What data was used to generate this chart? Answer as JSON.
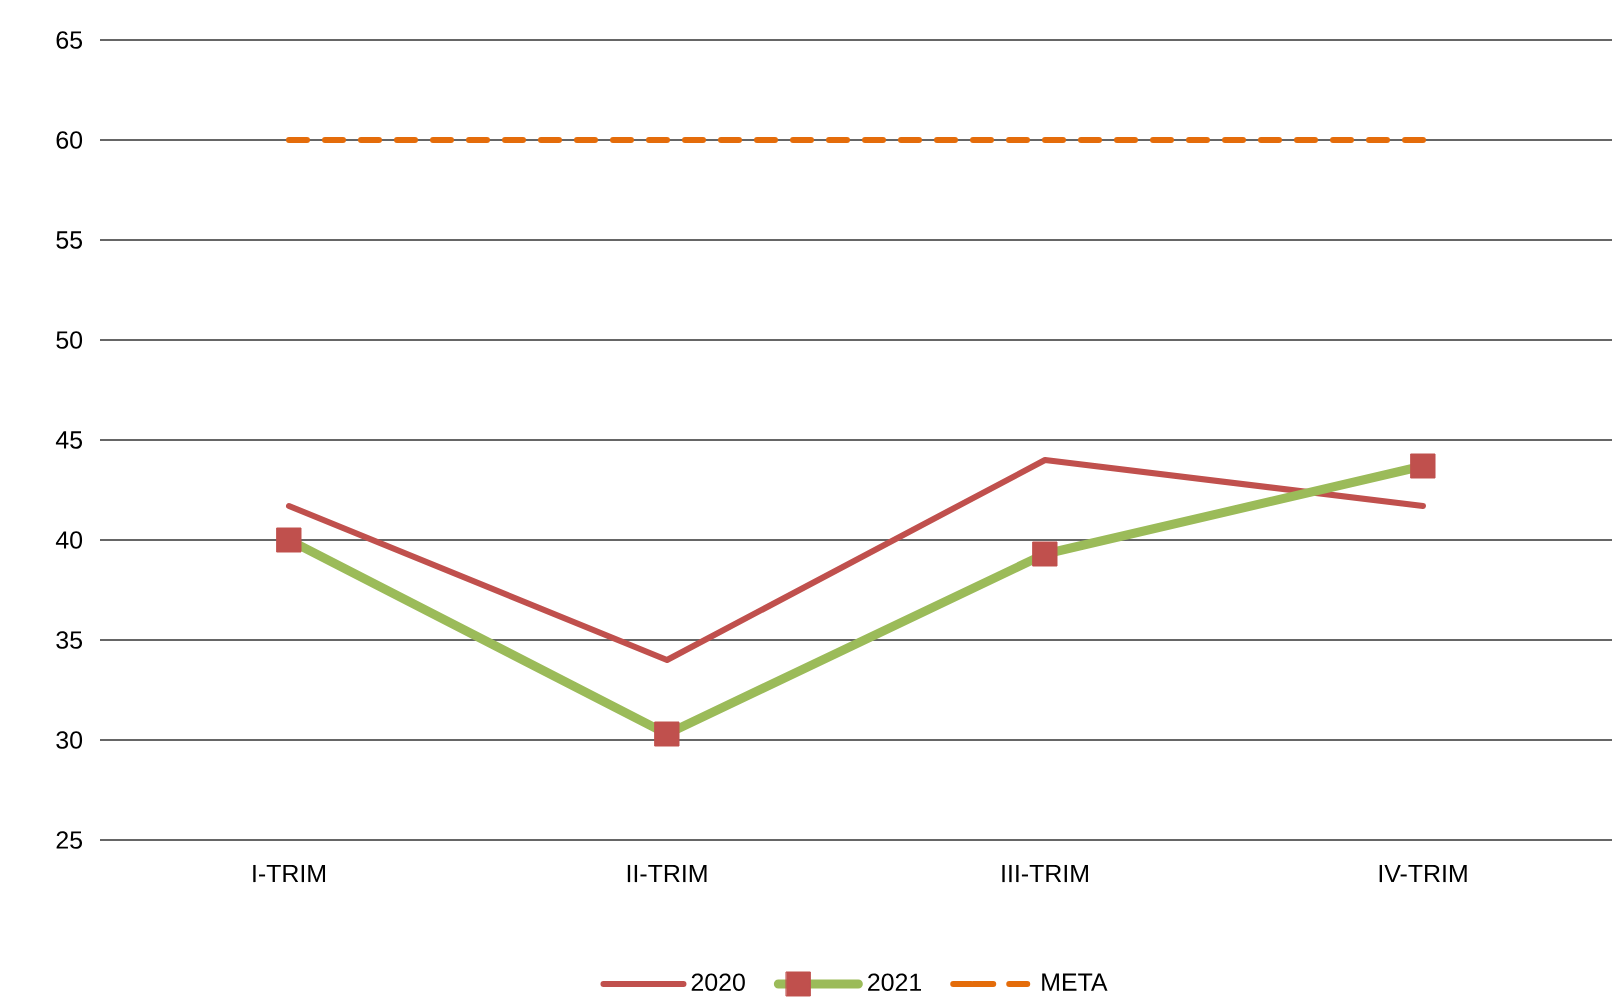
{
  "chart_data": {
    "type": "line",
    "categories": [
      "I-TRIM",
      "II-TRIM",
      "III-TRIM",
      "IV-TRIM"
    ],
    "series": [
      {
        "name": "2020",
        "color": "#c0504d",
        "values": [
          41.7,
          34,
          44,
          41.7
        ],
        "marker": "none",
        "line_style": "solid"
      },
      {
        "name": "2021",
        "color": "#9bbb59",
        "colors": [
          "#c0504d",
          "#c0504d",
          "#c0504d",
          "#c0504d"
        ],
        "values": [
          40,
          30.3,
          39.3,
          43.7
        ],
        "marker": "square",
        "line_style": "solid"
      },
      {
        "name": "META",
        "color": "#e46c0a",
        "values": [
          60,
          60,
          60,
          60
        ],
        "marker": "none",
        "line_style": "dashed"
      }
    ],
    "ylim": [
      25,
      65
    ],
    "yticks": [
      25,
      30,
      35,
      40,
      45,
      50,
      55,
      60,
      65
    ],
    "grid": "y",
    "legend": "bottom"
  }
}
